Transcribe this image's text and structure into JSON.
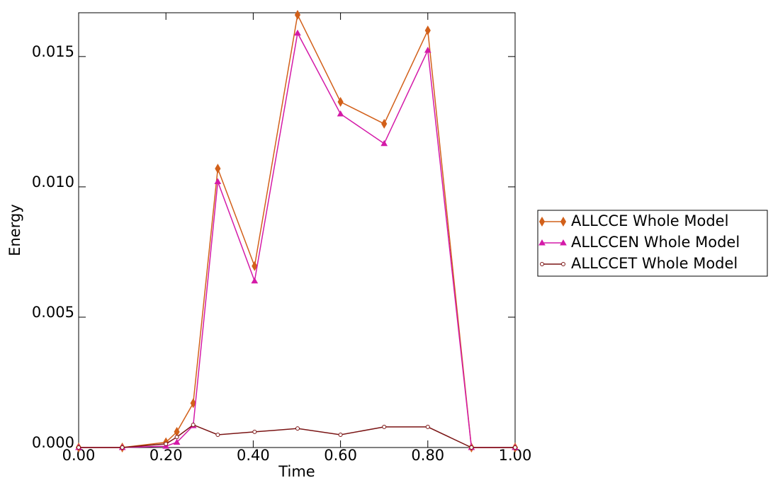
{
  "chart_data": {
    "type": "line",
    "x_label": "Time",
    "y_label": "Energy",
    "xlim": [
      0,
      1
    ],
    "ylim": [
      0,
      0.01668
    ],
    "xticks": [
      {
        "value": 0,
        "label": "0.00"
      },
      {
        "value": 0.2,
        "label": "0.20"
      },
      {
        "value": 0.4,
        "label": "0.40"
      },
      {
        "value": 0.6,
        "label": "0.60"
      },
      {
        "value": 0.8,
        "label": "0.80"
      },
      {
        "value": 1,
        "label": "1.00"
      }
    ],
    "yticks": [
      {
        "value": 0,
        "label": "0.000"
      },
      {
        "value": 0.005,
        "label": "0.005"
      },
      {
        "value": 0.01,
        "label": "0.010"
      },
      {
        "value": 0.015,
        "label": "0.015"
      }
    ],
    "x": [
      0,
      0.1,
      0.2,
      0.225,
      0.2625,
      0.3188,
      0.4031,
      0.5016,
      0.6,
      0.7,
      0.8,
      0.9,
      1.0
    ],
    "series": [
      {
        "name": "ALLCCE Whole Model",
        "color": "#d2601a",
        "marker": "diamond",
        "values": [
          0,
          0,
          0.0002,
          0.0006,
          0.0017,
          0.0107,
          0.00696,
          0.0166,
          0.01326,
          0.01242,
          0.016,
          0,
          0
        ]
      },
      {
        "name": "ALLCCEN Whole Model",
        "color": "#d41aa8",
        "marker": "triangle",
        "values": [
          0,
          0,
          5e-05,
          0.0002,
          0.00084,
          0.0102,
          0.00639,
          0.0159,
          0.0128,
          0.01166,
          0.01524,
          0,
          0
        ]
      },
      {
        "name": "ALLCCET Whole Model",
        "color": "#7a1414",
        "marker": "circle",
        "values": [
          0,
          0,
          0.00014,
          0.0004,
          0.00087,
          0.00049,
          0.0006,
          0.00073,
          0.00049,
          0.00079,
          0.00079,
          0,
          0
        ]
      }
    ]
  }
}
